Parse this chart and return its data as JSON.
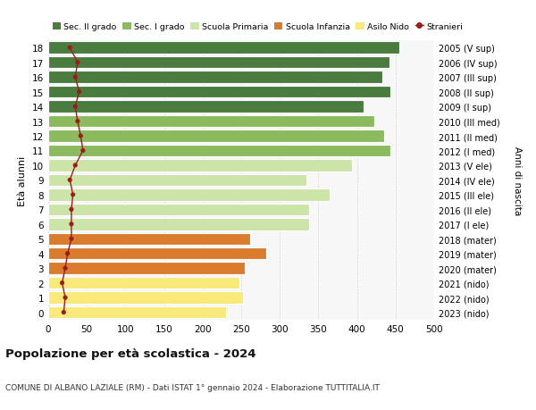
{
  "ages": [
    0,
    1,
    2,
    3,
    4,
    5,
    6,
    7,
    8,
    9,
    10,
    11,
    12,
    13,
    14,
    15,
    16,
    17,
    18
  ],
  "bar_values": [
    230,
    252,
    248,
    255,
    282,
    262,
    338,
    338,
    365,
    335,
    393,
    443,
    435,
    422,
    408,
    443,
    433,
    442,
    455
  ],
  "bar_colors": [
    "#f9e87a",
    "#f9e87a",
    "#f9e87a",
    "#d97c2e",
    "#d97c2e",
    "#d97c2e",
    "#cde4a8",
    "#cde4a8",
    "#cde4a8",
    "#cde4a8",
    "#cde4a8",
    "#8cba5f",
    "#8cba5f",
    "#8cba5f",
    "#4a7c3f",
    "#4a7c3f",
    "#4a7c3f",
    "#4a7c3f",
    "#4a7c3f"
  ],
  "stranieri_values": [
    20,
    22,
    18,
    22,
    25,
    30,
    30,
    30,
    32,
    28,
    35,
    45,
    42,
    38,
    35,
    40,
    35,
    38,
    28
  ],
  "right_labels": [
    "2023 (nido)",
    "2022 (nido)",
    "2021 (nido)",
    "2020 (mater)",
    "2019 (mater)",
    "2018 (mater)",
    "2017 (I ele)",
    "2016 (II ele)",
    "2015 (III ele)",
    "2014 (IV ele)",
    "2013 (V ele)",
    "2012 (I med)",
    "2011 (II med)",
    "2010 (III med)",
    "2009 (I sup)",
    "2008 (II sup)",
    "2007 (III sup)",
    "2006 (IV sup)",
    "2005 (V sup)"
  ],
  "legend_labels": [
    "Sec. II grado",
    "Sec. I grado",
    "Scuola Primaria",
    "Scuola Infanzia",
    "Asilo Nido",
    "Stranieri"
  ],
  "legend_colors": [
    "#4a7c3f",
    "#8cba5f",
    "#cde4a8",
    "#d97c2e",
    "#f9e87a",
    "#9b1c1c"
  ],
  "ylabel_left": "Età alunni",
  "ylabel_right": "Anni di nascita",
  "title": "Popolazione per età scolastica - 2024",
  "subtitle": "COMUNE DI ALBANO LAZIALE (RM) - Dati ISTAT 1° gennaio 2024 - Elaborazione TUTTITALIA.IT",
  "xlim": [
    0,
    500
  ],
  "xticks": [
    0,
    50,
    100,
    150,
    200,
    250,
    300,
    350,
    400,
    450,
    500
  ],
  "background_color": "#ffffff",
  "bar_background": "#f7f7f7",
  "grid_color": "#cccccc"
}
